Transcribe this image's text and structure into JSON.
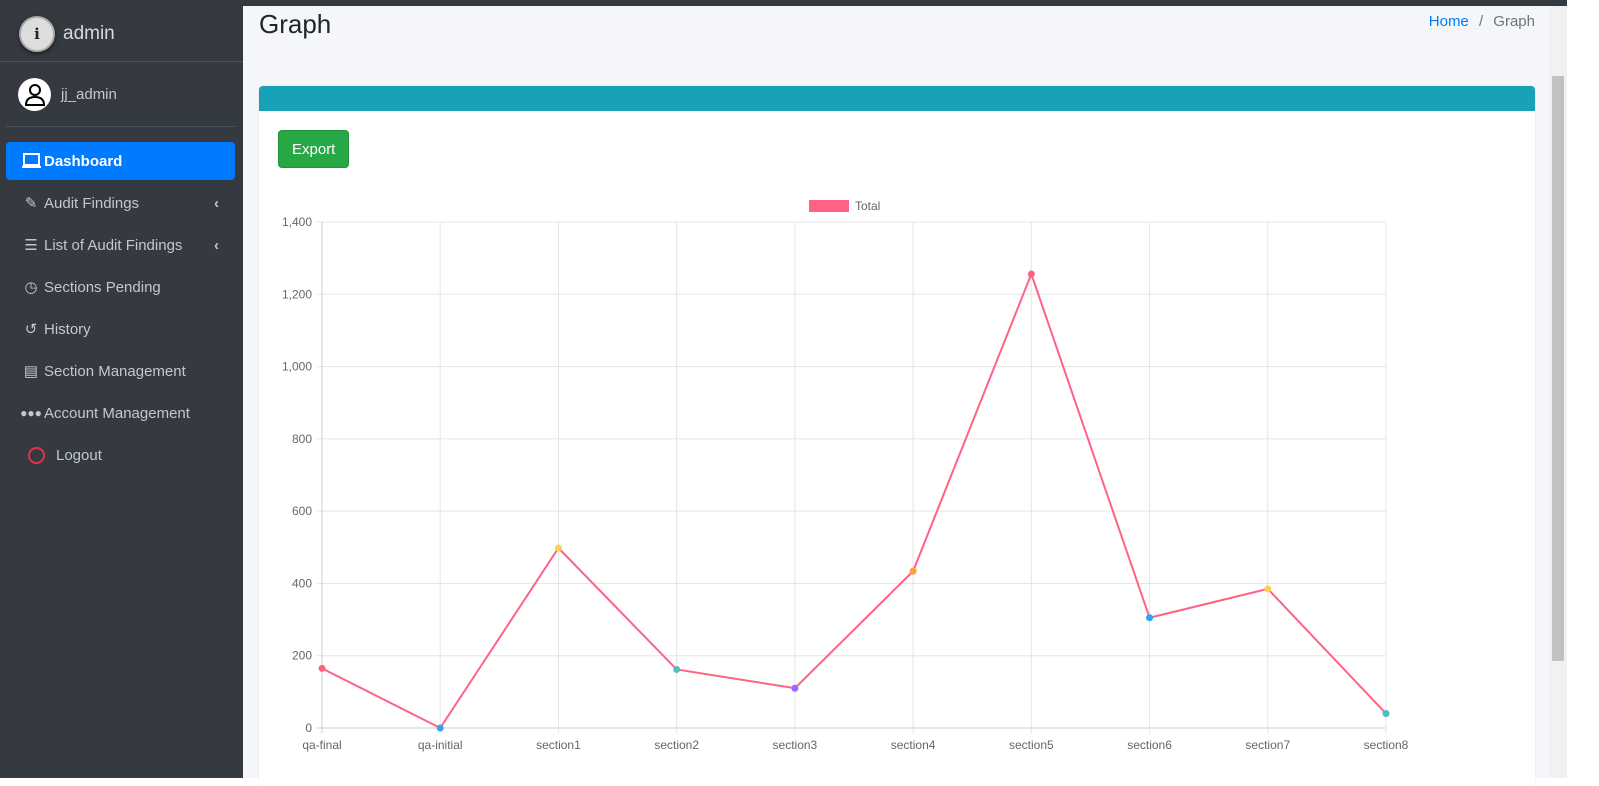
{
  "sidebar": {
    "brand": "admin",
    "user": "jj_admin",
    "items": [
      {
        "label": "Dashboard",
        "icon": "laptop-icon"
      },
      {
        "label": "Audit Findings",
        "icon": "edit-icon"
      },
      {
        "label": "List of Audit Findings",
        "icon": "tasks-icon"
      },
      {
        "label": "Sections Pending",
        "icon": "clock-icon"
      },
      {
        "label": "History",
        "icon": "history-icon"
      },
      {
        "label": "Section Management",
        "icon": "list-alt-icon"
      },
      {
        "label": "Account Management",
        "icon": "users-icon"
      },
      {
        "label": "Logout",
        "icon": "circle-icon"
      }
    ]
  },
  "header": {
    "title": "Graph",
    "breadcrumb_home": "Home",
    "breadcrumb_sep": "/",
    "breadcrumb_current": "Graph"
  },
  "card": {
    "export_label": "Export"
  },
  "colors": {
    "line": "#ff6384",
    "header": "#17a2b8",
    "export": "#28a745"
  },
  "chart_data": {
    "type": "line",
    "legend": "Total",
    "legend_position": "top",
    "categories": [
      "qa-final",
      "qa-initial",
      "section1",
      "section2",
      "section3",
      "section4",
      "section5",
      "section6",
      "section7",
      "section8"
    ],
    "values": [
      165,
      0,
      498,
      162,
      110,
      434,
      1256,
      305,
      385,
      40
    ],
    "point_colors": [
      "#ff6384",
      "#36a2eb",
      "#ffcd56",
      "#4bc0c0",
      "#9966ff",
      "#ff9f40",
      "#ff6384",
      "#36a2eb",
      "#ffcd56",
      "#4bc0c0"
    ],
    "ylim": [
      0,
      1400
    ],
    "yticks": [
      "0",
      "200",
      "400",
      "600",
      "800",
      "1,000",
      "1,200",
      "1,400"
    ],
    "grid": true
  }
}
